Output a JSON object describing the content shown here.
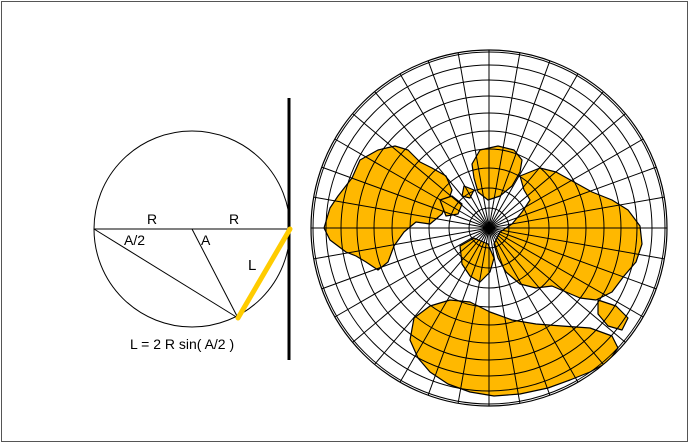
{
  "diagram": {
    "labels": {
      "radius_left": "R",
      "radius_right": "R",
      "half_angle": "A/2",
      "angle": "A",
      "chord": "L",
      "formula": "L = 2 R sin( A/2 )"
    }
  },
  "colors": {
    "land": "#FFB800",
    "chord": "#FFCC00",
    "line": "#000000",
    "border": "#555555",
    "background": "#FFFFFF"
  }
}
